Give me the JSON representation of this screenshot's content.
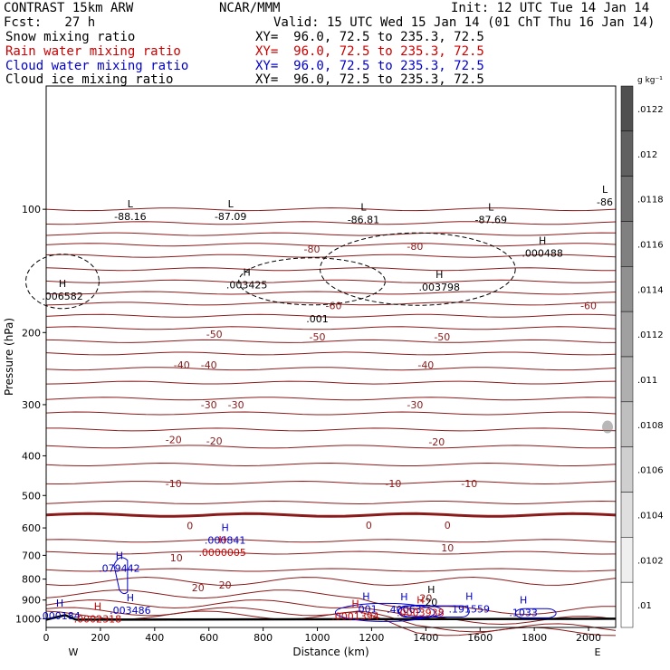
{
  "header": {
    "model": "CONTRAST 15km ARW",
    "org": "NCAR/MMM",
    "init": "Init: 12 UTC Tue 14 Jan 14",
    "fcst": "Fcst:   27 h",
    "valid": "Valid: 15 UTC Wed 15 Jan 14 (01 ChT Thu 16 Jan 14)"
  },
  "fields": [
    {
      "name": "Snow mixing ratio",
      "xy": "XY=  96.0, 72.5 to 235.3, 72.5",
      "color": "#000000"
    },
    {
      "name": "Rain water mixing ratio",
      "xy": "XY=  96.0, 72.5 to 235.3, 72.5",
      "color": "#cc0000"
    },
    {
      "name": "Cloud water mixing ratio",
      "xy": "XY=  96.0, 72.5 to 235.3, 72.5",
      "color": "#0000cc"
    },
    {
      "name": "Cloud ice mixing ratio",
      "xy": "XY=  96.0, 72.5 to 235.3, 72.5",
      "color": "#000000"
    }
  ],
  "chart_data": {
    "type": "cross-section contour",
    "xlabel": "Distance (km)",
    "ylabel": "Pressure (hPa)",
    "xlim": [
      0,
      2100
    ],
    "ylim": [
      1050,
      50
    ],
    "y_scale": "log",
    "x_ticks": [
      0,
      200,
      400,
      600,
      800,
      1000,
      1200,
      1400,
      1600,
      1800,
      2000
    ],
    "y_ticks": [
      100,
      200,
      300,
      400,
      500,
      600,
      700,
      800,
      900,
      1000
    ],
    "endpoints": {
      "left": "W",
      "right": "E"
    },
    "colorbar": {
      "unit": "g kg⁻¹",
      "ticks": [
        ".0122",
        ".012",
        ".0118",
        ".0116",
        ".0114",
        ".0112",
        ".011",
        ".0108",
        ".0106",
        ".0104",
        ".0102",
        ".01"
      ]
    },
    "temperature_labels": [
      {
        "text": "-80",
        "x": 980,
        "p": 125
      },
      {
        "text": "-80",
        "x": 1360,
        "p": 123
      },
      {
        "text": "-60",
        "x": 1060,
        "p": 172
      },
      {
        "text": "-60",
        "x": 2000,
        "p": 172
      },
      {
        "text": "-50",
        "x": 620,
        "p": 202
      },
      {
        "text": "-50",
        "x": 1000,
        "p": 205
      },
      {
        "text": "-50",
        "x": 1460,
        "p": 205
      },
      {
        "text": "-40",
        "x": 500,
        "p": 240
      },
      {
        "text": "-40",
        "x": 600,
        "p": 240
      },
      {
        "text": "-40",
        "x": 1400,
        "p": 240
      },
      {
        "text": "-30",
        "x": 600,
        "p": 300
      },
      {
        "text": "-30",
        "x": 700,
        "p": 300
      },
      {
        "text": "-30",
        "x": 1360,
        "p": 300
      },
      {
        "text": "-20",
        "x": 470,
        "p": 365
      },
      {
        "text": "-20",
        "x": 620,
        "p": 368
      },
      {
        "text": "-20",
        "x": 1440,
        "p": 370
      },
      {
        "text": "-10",
        "x": 470,
        "p": 467
      },
      {
        "text": "-10",
        "x": 1280,
        "p": 467
      },
      {
        "text": "-10",
        "x": 1560,
        "p": 467
      },
      {
        "text": "0",
        "x": 530,
        "p": 592
      },
      {
        "text": "0",
        "x": 1190,
        "p": 590
      },
      {
        "text": "0",
        "x": 1480,
        "p": 590
      },
      {
        "text": "10",
        "x": 1480,
        "p": 670
      },
      {
        "text": "10",
        "x": 480,
        "p": 710
      },
      {
        "text": "20",
        "x": 560,
        "p": 840
      },
      {
        "text": "20",
        "x": 660,
        "p": 826
      },
      {
        "text": "20",
        "x": 1400,
        "p": 891
      }
    ],
    "extrema_labels": [
      {
        "mark": "L",
        "value": "-88.16",
        "x": 310,
        "p": 104,
        "color": "#000000"
      },
      {
        "mark": "L",
        "value": "-87.09",
        "x": 680,
        "p": 104,
        "color": "#000000"
      },
      {
        "mark": "L",
        "value": "-86.81",
        "x": 1170,
        "p": 106,
        "color": "#000000"
      },
      {
        "mark": "L",
        "value": "-87.69",
        "x": 1640,
        "p": 106,
        "color": "#000000"
      },
      {
        "mark": "L",
        "value": "-86",
        "x": 2060,
        "p": 96,
        "color": "#000000"
      },
      {
        "mark": "H",
        "value": ".006582",
        "x": 60,
        "p": 163,
        "color": "#000000"
      },
      {
        "mark": "H",
        "value": ".003425",
        "x": 740,
        "p": 153,
        "color": "#000000"
      },
      {
        "mark": "H",
        "value": ".003798",
        "x": 1450,
        "p": 155,
        "color": "#000000"
      },
      {
        "mark": "H",
        "value": ".000488",
        "x": 1830,
        "p": 128,
        "color": "#000000"
      },
      {
        "mark": "H",
        "value": ".000841",
        "x": 660,
        "p": 642,
        "color": "#0000cc"
      },
      {
        "mark": "H",
        "value": ".0000005",
        "x": 650,
        "p": 688,
        "color": "#cc0000"
      },
      {
        "mark": "H",
        "value": ".079442",
        "x": 270,
        "p": 752,
        "color": "#0000cc"
      },
      {
        "mark": "H",
        "value": ".003486",
        "x": 310,
        "p": 954,
        "color": "#0000cc"
      },
      {
        "mark": "H",
        "value": ".000184",
        "x": 50,
        "p": 983,
        "color": "#0000cc"
      },
      {
        "mark": "H",
        "value": ".0002318",
        "x": 190,
        "p": 1000,
        "color": "#cc0000"
      },
      {
        "mark": "H",
        "value": ".001",
        "x": 1180,
        "p": 945,
        "color": "#0000cc"
      },
      {
        "mark": "H",
        "value": ".40063",
        "x": 1320,
        "p": 948,
        "color": "#0000cc"
      },
      {
        "mark": "H",
        "value": ".191559",
        "x": 1560,
        "p": 945,
        "color": "#0000cc"
      },
      {
        "mark": "H",
        "value": ".1033",
        "x": 1760,
        "p": 965,
        "color": "#0000cc"
      },
      {
        "mark": "H",
        "value": ".0003938",
        "x": 1380,
        "p": 965,
        "color": "#cc0000"
      },
      {
        "mark": "H",
        "value": ".0001394",
        "x": 1140,
        "p": 985,
        "color": "#cc0000"
      },
      {
        "mark": "H",
        "value": "20",
        "x": 1420,
        "p": 910,
        "color": "#000000"
      },
      {
        "mark": "",
        "value": ".001",
        "x": 1000,
        "p": 185,
        "color": "#000000"
      }
    ]
  }
}
